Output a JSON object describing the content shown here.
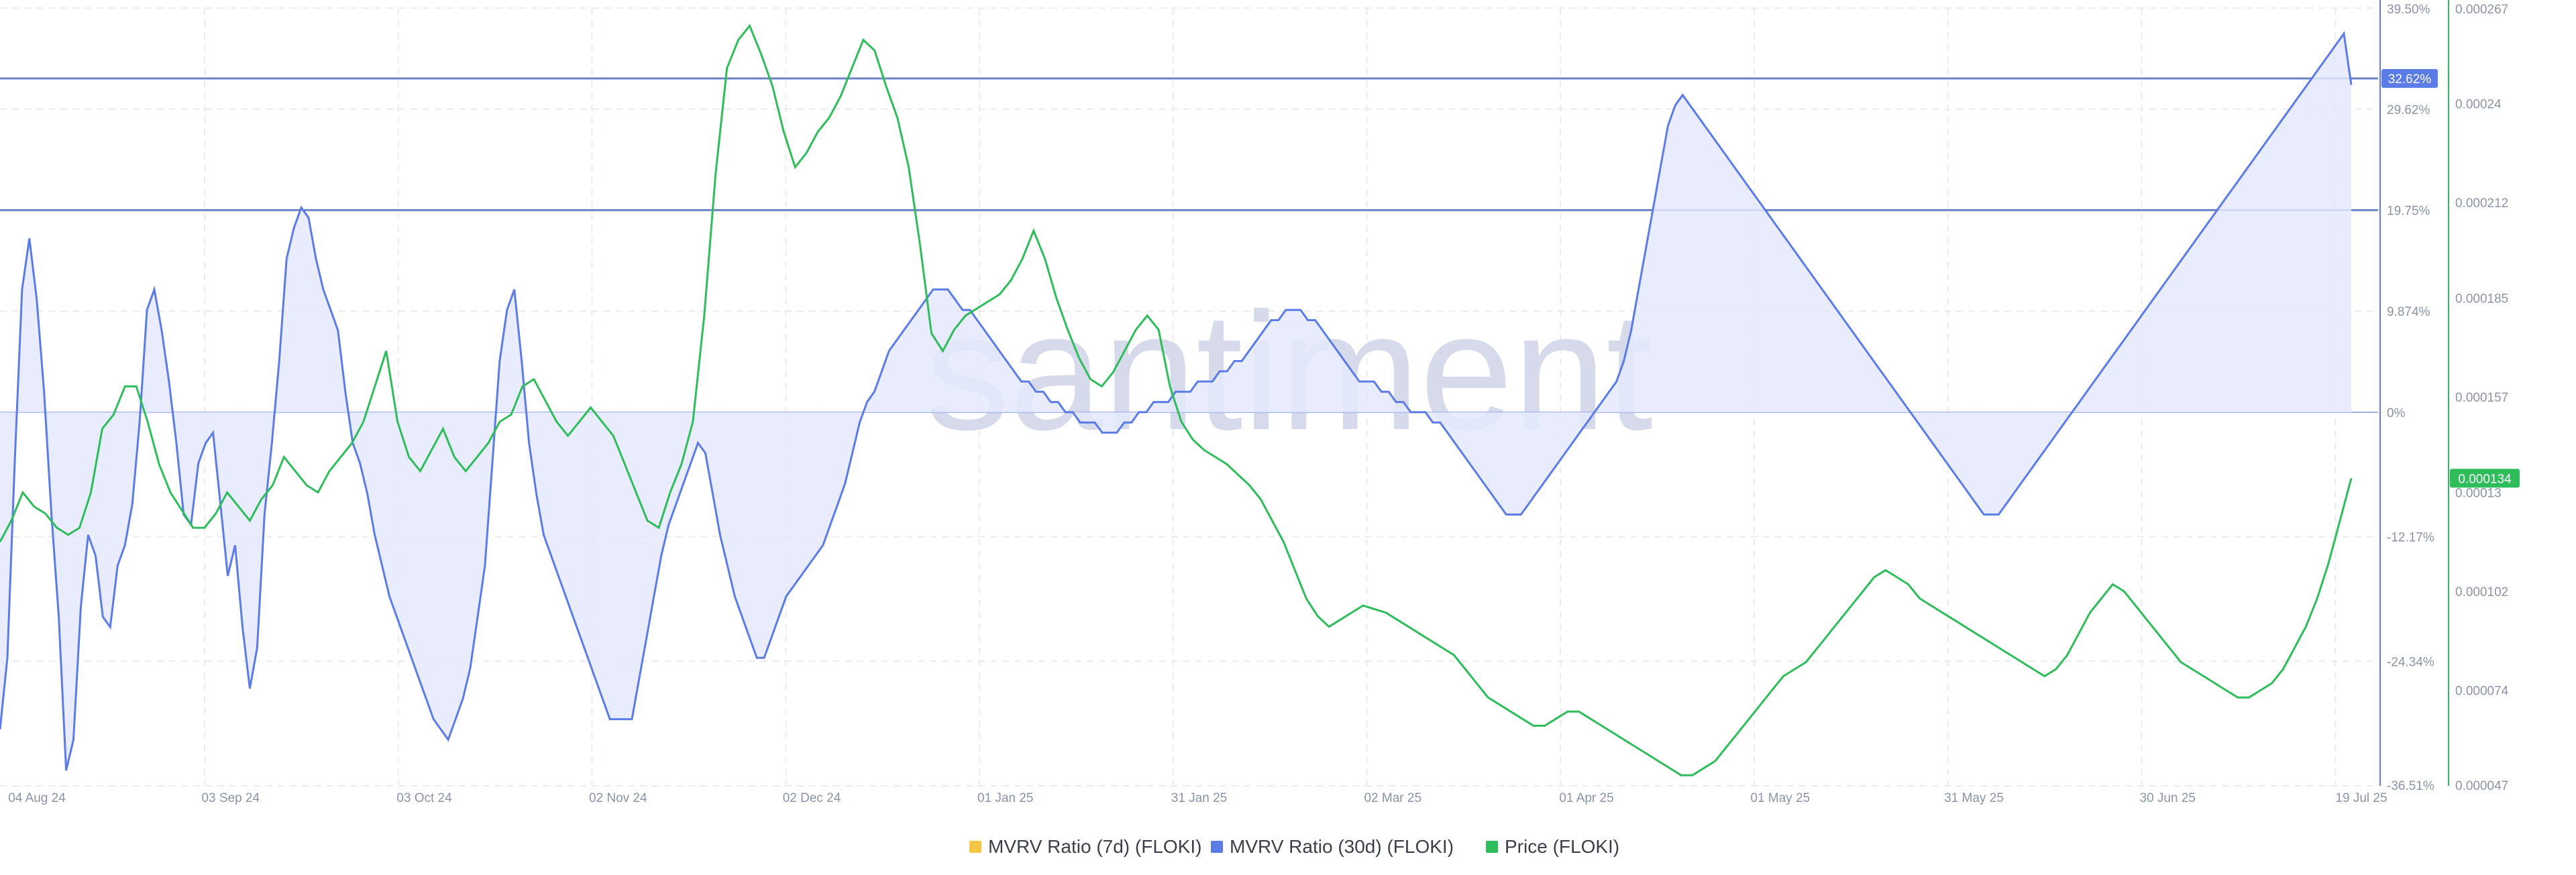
{
  "watermark": "santiment",
  "chart_data": {
    "type": "line",
    "x_ticks": [
      "04 Aug 24",
      "03 Sep 24",
      "03 Oct 24",
      "02 Nov 24",
      "02 Dec 24",
      "01 Jan 25",
      "31 Jan 25",
      "02 Mar 25",
      "01 Apr 25",
      "01 May 25",
      "31 May 25",
      "30 Jun 25",
      "19 Jul 25"
    ],
    "y_left": {
      "ticks": [
        "39.50%",
        "29.62%",
        "19.75%",
        "9.874%",
        "0%",
        "-12.17%",
        "-24.34%",
        "-36.51%"
      ],
      "tick_values": [
        39.5,
        29.62,
        19.75,
        9.874,
        0,
        -12.17,
        -24.34,
        -36.51
      ],
      "range": [
        -36.51,
        39.5
      ]
    },
    "y_right": {
      "ticks": [
        "0.000267",
        "0.00024",
        "0.000212",
        "0.000185",
        "0.000157",
        "0.00013",
        "0.000102",
        "0.000074",
        "0.000047"
      ],
      "tick_values": [
        0.000267,
        0.00024,
        0.000212,
        0.000185,
        0.000157,
        0.00013,
        0.000102,
        7.4e-05,
        4.7e-05
      ],
      "range": [
        4.7e-05,
        0.000267
      ]
    },
    "reference_lines_pct": [
      32.62,
      19.75,
      0
    ],
    "current_badges": {
      "mvrv_30d": "32.62%",
      "price": "0.000134"
    },
    "colors": {
      "mvrv_7d": "#f5c544",
      "mvrv_30d": "#5b7be6",
      "mvrv_fill": "#e4e9fb",
      "price": "#2ebd5a",
      "grid": "#e9ebf0",
      "ref_line": "#6b82c9"
    },
    "legend_position": "bottom-center",
    "series": [
      {
        "name": "MVRV Ratio (7d) (FLOKI)",
        "color": "#f5c544",
        "values": []
      },
      {
        "name": "MVRV Ratio (30d) (FLOKI)",
        "color": "#5b7be6",
        "axis": "left",
        "values": [
          -31,
          -24,
          -5,
          12,
          17,
          11,
          2,
          -10,
          -20,
          -35,
          -32,
          -19,
          -12,
          -14,
          -20,
          -21,
          -15,
          -13,
          -9,
          -1,
          10,
          12,
          8,
          3,
          -3,
          -10,
          -11,
          -5,
          -3,
          -2,
          -9,
          -16,
          -13,
          -21,
          -27,
          -23,
          -10,
          -3,
          5,
          15,
          18,
          20,
          19,
          15,
          12,
          10,
          8,
          2,
          -3,
          -5,
          -8,
          -12,
          -15,
          -18,
          -20,
          -22,
          -24,
          -26,
          -28,
          -30,
          -31,
          -32,
          -30,
          -28,
          -25,
          -20,
          -15,
          -5,
          5,
          10,
          12,
          5,
          -3,
          -8,
          -12,
          -14,
          -16,
          -18,
          -20,
          -22,
          -24,
          -26,
          -28,
          -30,
          -30,
          -30,
          -30,
          -26,
          -22,
          -18,
          -14,
          -11,
          -9,
          -7,
          -5,
          -3,
          -4,
          -8,
          -12,
          -15,
          -18,
          -20,
          -22,
          -24,
          -24,
          -22,
          -20,
          -18,
          -17,
          -16,
          -15,
          -14,
          -13,
          -11,
          -9,
          -7,
          -4,
          -1,
          1,
          2,
          4,
          6,
          7,
          8,
          9,
          10,
          11,
          12,
          12,
          12,
          11,
          10,
          10,
          9,
          8,
          7,
          6,
          5,
          4,
          3,
          3,
          2,
          2,
          1,
          1,
          0,
          0,
          -1,
          -1,
          -1,
          -2,
          -2,
          -2,
          -1,
          -1,
          0,
          0,
          1,
          1,
          1,
          2,
          2,
          2,
          3,
          3,
          3,
          4,
          4,
          5,
          5,
          6,
          7,
          8,
          9,
          9,
          10,
          10,
          10,
          9,
          9,
          8,
          7,
          6,
          5,
          4,
          3,
          3,
          3,
          2,
          2,
          1,
          1,
          0,
          0,
          0,
          -1,
          -1,
          -2,
          -3,
          -4,
          -5,
          -6,
          -7,
          -8,
          -9,
          -10,
          -10,
          -10,
          -9,
          -8,
          -7,
          -6,
          -5,
          -4,
          -3,
          -2,
          -1,
          0,
          1,
          2,
          3,
          5,
          8,
          12,
          16,
          20,
          24,
          28,
          30,
          31,
          30,
          29,
          28,
          27,
          26,
          25,
          24,
          23,
          22,
          21,
          20,
          19,
          18,
          17,
          16,
          15,
          14,
          13,
          12,
          11,
          10,
          9,
          8,
          7,
          6,
          5,
          4,
          3,
          2,
          1,
          0,
          -1,
          -2,
          -3,
          -4,
          -5,
          -6,
          -7,
          -8,
          -9,
          -10,
          -10,
          -10,
          -9,
          -8,
          -7,
          -6,
          -5,
          -4,
          -3,
          -2,
          -1,
          0,
          1,
          2,
          3,
          4,
          5,
          6,
          7,
          8,
          9,
          10,
          11,
          12,
          13,
          14,
          15,
          16,
          17,
          18,
          19,
          20,
          21,
          22,
          23,
          24,
          25,
          26,
          27,
          28,
          29,
          30,
          31,
          32,
          33,
          34,
          35,
          36,
          37,
          32
        ]
      },
      {
        "name": "Price (FLOKI)",
        "color": "#2ebd5a",
        "axis": "right",
        "values": [
          0.000116,
          0.000122,
          0.00013,
          0.000126,
          0.000124,
          0.00012,
          0.000118,
          0.00012,
          0.00013,
          0.000148,
          0.000152,
          0.00016,
          0.00016,
          0.00015,
          0.000138,
          0.00013,
          0.000125,
          0.00012,
          0.00012,
          0.000124,
          0.00013,
          0.000126,
          0.000122,
          0.000128,
          0.000132,
          0.00014,
          0.000136,
          0.000132,
          0.00013,
          0.000136,
          0.00014,
          0.000144,
          0.00015,
          0.00016,
          0.00017,
          0.00015,
          0.00014,
          0.000136,
          0.000142,
          0.000148,
          0.00014,
          0.000136,
          0.00014,
          0.000144,
          0.00015,
          0.000152,
          0.00016,
          0.000162,
          0.000156,
          0.00015,
          0.000146,
          0.00015,
          0.000154,
          0.00015,
          0.000146,
          0.000138,
          0.00013,
          0.000122,
          0.00012,
          0.00013,
          0.000138,
          0.00015,
          0.00018,
          0.00022,
          0.00025,
          0.000258,
          0.000262,
          0.000254,
          0.000245,
          0.000232,
          0.000222,
          0.000226,
          0.000232,
          0.000236,
          0.000242,
          0.00025,
          0.000258,
          0.000255,
          0.000245,
          0.000236,
          0.000222,
          0.0002,
          0.000175,
          0.00017,
          0.000176,
          0.00018,
          0.000182,
          0.000184,
          0.000186,
          0.00019,
          0.000196,
          0.000204,
          0.000196,
          0.000185,
          0.000176,
          0.000168,
          0.000162,
          0.00016,
          0.000164,
          0.00017,
          0.000176,
          0.00018,
          0.000176,
          0.00016,
          0.00015,
          0.000145,
          0.000142,
          0.00014,
          0.000138,
          0.000135,
          0.000132,
          0.000128,
          0.000122,
          0.000116,
          0.000108,
          0.0001,
          9.5e-05,
          9.2e-05,
          9.4e-05,
          9.6e-05,
          9.8e-05,
          9.7e-05,
          9.6e-05,
          9.4e-05,
          9.2e-05,
          9e-05,
          8.8e-05,
          8.6e-05,
          8.4e-05,
          8e-05,
          7.6e-05,
          7.2e-05,
          7e-05,
          6.8e-05,
          6.6e-05,
          6.4e-05,
          6.4e-05,
          6.6e-05,
          6.8e-05,
          6.8e-05,
          6.6e-05,
          6.4e-05,
          6.2e-05,
          6e-05,
          5.8e-05,
          5.6e-05,
          5.4e-05,
          5.2e-05,
          5e-05,
          5e-05,
          5.2e-05,
          5.4e-05,
          5.8e-05,
          6.2e-05,
          6.6e-05,
          7e-05,
          7.4e-05,
          7.8e-05,
          8e-05,
          8.2e-05,
          8.6e-05,
          9e-05,
          9.4e-05,
          9.8e-05,
          0.000102,
          0.000106,
          0.000108,
          0.000106,
          0.000104,
          0.0001,
          9.8e-05,
          9.6e-05,
          9.4e-05,
          9.2e-05,
          9e-05,
          8.8e-05,
          8.6e-05,
          8.4e-05,
          8.2e-05,
          8e-05,
          7.8e-05,
          8e-05,
          8.4e-05,
          9e-05,
          9.6e-05,
          0.0001,
          0.000104,
          0.000102,
          9.8e-05,
          9.4e-05,
          9e-05,
          8.6e-05,
          8.2e-05,
          8e-05,
          7.8e-05,
          7.6e-05,
          7.4e-05,
          7.2e-05,
          7.2e-05,
          7.4e-05,
          7.6e-05,
          8e-05,
          8.6e-05,
          9.2e-05,
          0.0001,
          0.00011,
          0.000122,
          0.000134
        ]
      }
    ]
  }
}
